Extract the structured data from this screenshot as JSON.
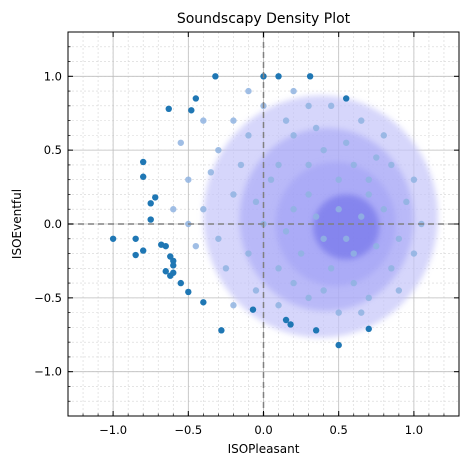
{
  "chart_data": {
    "type": "scatter",
    "title": "Soundscapy Density Plot",
    "xlabel": "ISOPleasant",
    "ylabel": "ISOEventful",
    "xlim": [
      -1.3,
      1.3
    ],
    "ylim": [
      -1.3,
      1.3
    ],
    "xticks": [
      -1.0,
      -0.5,
      0.0,
      0.5,
      1.0
    ],
    "xtick_labels": [
      "−1.0",
      "−0.5",
      "0.0",
      "0.5",
      "1.0"
    ],
    "yticks": [
      -1.0,
      -0.5,
      0.0,
      0.5,
      1.0
    ],
    "ytick_labels": [
      "−1.0",
      "−0.5",
      "0.0",
      "0.5",
      "1.0"
    ],
    "grid": "major and minor",
    "reference_lines": [
      {
        "axis": "x",
        "value": 0
      },
      {
        "axis": "y",
        "value": 0
      }
    ],
    "colors": {
      "points": "#1f77b4",
      "points_inside": "#8fb3e0",
      "density_outer": "#c4c4fa",
      "density_mid": "#9e9ef5",
      "density_core": "#6060e6"
    },
    "density_levels": [
      {
        "cx": 0.38,
        "cy": 0.05,
        "rx": 0.78,
        "ry": 0.82,
        "opacity": 0.7
      },
      {
        "cx": 0.42,
        "cy": 0.03,
        "rx": 0.58,
        "ry": 0.62,
        "opacity": 0.5
      },
      {
        "cx": 0.48,
        "cy": 0.0,
        "rx": 0.4,
        "ry": 0.42,
        "opacity": 0.5
      },
      {
        "cx": 0.55,
        "cy": -0.02,
        "rx": 0.22,
        "ry": 0.22,
        "opacity": 0.5
      }
    ],
    "points_outside": [
      [
        -1.0,
        -0.1
      ],
      [
        -0.85,
        -0.1
      ],
      [
        -0.85,
        -0.21
      ],
      [
        -0.8,
        -0.18
      ],
      [
        -0.8,
        0.42
      ],
      [
        -0.8,
        0.32
      ],
      [
        -0.75,
        0.14
      ],
      [
        -0.75,
        0.03
      ],
      [
        -0.72,
        0.18
      ],
      [
        -0.68,
        -0.14
      ],
      [
        -0.65,
        -0.15
      ],
      [
        -0.62,
        -0.22
      ],
      [
        -0.6,
        -0.25
      ],
      [
        -0.6,
        -0.28
      ],
      [
        -0.65,
        -0.32
      ],
      [
        -0.62,
        -0.35
      ],
      [
        -0.6,
        -0.33
      ],
      [
        -0.55,
        -0.4
      ],
      [
        -0.5,
        -0.46
      ],
      [
        -0.4,
        -0.53
      ],
      [
        -0.28,
        -0.72
      ],
      [
        -0.07,
        -0.58
      ],
      [
        0.15,
        -0.65
      ],
      [
        0.18,
        -0.68
      ],
      [
        0.35,
        -0.72
      ],
      [
        0.5,
        -0.82
      ],
      [
        0.7,
        -0.71
      ],
      [
        -0.63,
        0.78
      ],
      [
        -0.48,
        0.77
      ],
      [
        -0.32,
        1.0
      ],
      [
        0.0,
        1.0
      ],
      [
        0.1,
        1.0
      ],
      [
        0.31,
        1.0
      ],
      [
        0.55,
        0.85
      ],
      [
        -0.45,
        0.85
      ]
    ],
    "points_inside": [
      [
        -0.3,
        0.5
      ],
      [
        -0.2,
        0.7
      ],
      [
        -0.1,
        0.6
      ],
      [
        0.0,
        0.8
      ],
      [
        0.1,
        0.4
      ],
      [
        0.2,
        0.6
      ],
      [
        0.3,
        0.8
      ],
      [
        0.4,
        0.5
      ],
      [
        0.5,
        0.3
      ],
      [
        0.6,
        0.4
      ],
      [
        0.7,
        0.2
      ],
      [
        0.8,
        0.1
      ],
      [
        0.9,
        -0.1
      ],
      [
        0.85,
        -0.3
      ],
      [
        0.7,
        -0.5
      ],
      [
        0.5,
        -0.6
      ],
      [
        0.3,
        -0.5
      ],
      [
        0.1,
        -0.3
      ],
      [
        -0.1,
        -0.2
      ],
      [
        -0.3,
        -0.1
      ],
      [
        -0.4,
        0.1
      ],
      [
        -0.5,
        0.3
      ],
      [
        -0.2,
        0.2
      ],
      [
        0.0,
        0.0
      ],
      [
        0.2,
        0.1
      ],
      [
        0.4,
        -0.1
      ],
      [
        0.6,
        -0.2
      ],
      [
        0.3,
        0.2
      ],
      [
        0.5,
        0.1
      ],
      [
        0.65,
        0.05
      ],
      [
        0.45,
        -0.3
      ],
      [
        0.25,
        -0.2
      ],
      [
        0.05,
        0.3
      ],
      [
        -0.15,
        0.4
      ],
      [
        0.15,
        0.7
      ],
      [
        0.35,
        0.65
      ],
      [
        0.55,
        0.55
      ],
      [
        0.75,
        0.45
      ],
      [
        0.95,
        0.15
      ],
      [
        0.6,
        -0.4
      ],
      [
        0.4,
        -0.45
      ],
      [
        0.2,
        -0.4
      ],
      [
        -0.05,
        -0.45
      ],
      [
        -0.25,
        -0.3
      ],
      [
        -0.45,
        -0.15
      ],
      [
        -0.35,
        0.35
      ],
      [
        -0.1,
        0.9
      ],
      [
        0.2,
        0.9
      ],
      [
        0.45,
        0.8
      ],
      [
        0.65,
        0.7
      ],
      [
        0.8,
        0.6
      ],
      [
        1.0,
        0.3
      ],
      [
        1.05,
        0.0
      ],
      [
        1.0,
        -0.2
      ],
      [
        0.9,
        -0.45
      ],
      [
        -0.55,
        0.55
      ],
      [
        -0.4,
        0.7
      ],
      [
        -0.5,
        0.0
      ],
      [
        -0.6,
        0.1
      ],
      [
        0.75,
        -0.15
      ],
      [
        0.55,
        -0.1
      ],
      [
        0.35,
        0.05
      ],
      [
        0.15,
        -0.05
      ],
      [
        -0.05,
        0.15
      ],
      [
        0.3,
        0.4
      ],
      [
        0.7,
        0.3
      ],
      [
        0.85,
        0.4
      ],
      [
        0.1,
        -0.55
      ],
      [
        0.65,
        -0.6
      ],
      [
        -0.2,
        -0.55
      ]
    ]
  }
}
